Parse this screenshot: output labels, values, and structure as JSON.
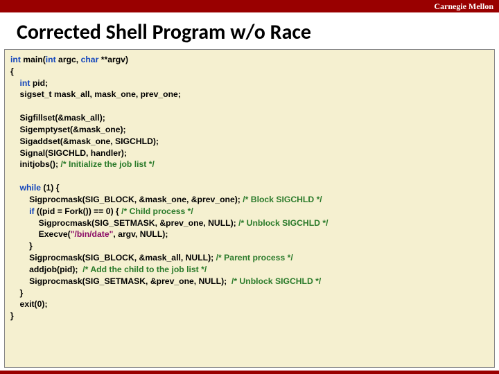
{
  "colors": {
    "brand_red": "#990000",
    "code_bg": "#f5f0d0",
    "keyword": "#1144bb",
    "string": "#8b0c66",
    "comment": "#2a7a2a"
  },
  "header": {
    "institution": "Carnegie Mellon"
  },
  "title": "Corrected Shell Program w/o Race",
  "code": {
    "sig_kw_int": "int",
    "sig_main": " main(",
    "sig_argc": " argc, ",
    "sig_kw_char": "char",
    "sig_argv": " **argv)",
    "brace_open": "{",
    "decl_pid_indent": "    ",
    "decl_pid_kw": "int",
    "decl_pid_rest": " pid;",
    "decl_sigset": "    sigset_t mask_all, mask_one, prev_one;",
    "blank1": " ",
    "l_fillset": "    Sigfillset(&mask_all);",
    "l_emptyset": "    Sigemptyset(&mask_one);",
    "l_addset": "    Sigaddset(&mask_one, SIGCHLD);",
    "l_signal": "    Signal(SIGCHLD, handler);",
    "l_initjobs_call": "    initjobs(); ",
    "l_initjobs_cmt": "/* Initialize the job list */",
    "blank2": " ",
    "while_indent": "    ",
    "while_kw": "while",
    "while_cond": " (1) {",
    "block_call": "        Sigprocmask(SIG_BLOCK, &mask_one, &prev_one); ",
    "block_cmt": "/* Block SIGCHLD */",
    "if_indent": "        ",
    "if_kw": "if",
    "if_cond": " ((pid = Fork()) == 0) { ",
    "if_cmt": "/* Child process */",
    "setmask1_call": "            Sigprocmask(SIG_SETMASK, &prev_one, NULL); ",
    "setmask1_cmt": "/* Unblock SIGCHLD */",
    "execve_pre": "            Execve(",
    "execve_str": "\"/bin/date\"",
    "execve_post": ", argv, NULL);",
    "if_close": "        }",
    "parent_call": "        Sigprocmask(SIG_BLOCK, &mask_all, NULL); ",
    "parent_cmt": "/* Parent process */",
    "addjob_call": "        addjob(pid);  ",
    "addjob_cmt": "/* Add the child to the job list */",
    "setmask2_call": "        Sigprocmask(SIG_SETMASK, &prev_one, NULL);  ",
    "setmask2_cmt": "/* Unblock SIGCHLD */",
    "while_close": "    }",
    "exit_call": "    exit(0);",
    "brace_close": "}"
  }
}
